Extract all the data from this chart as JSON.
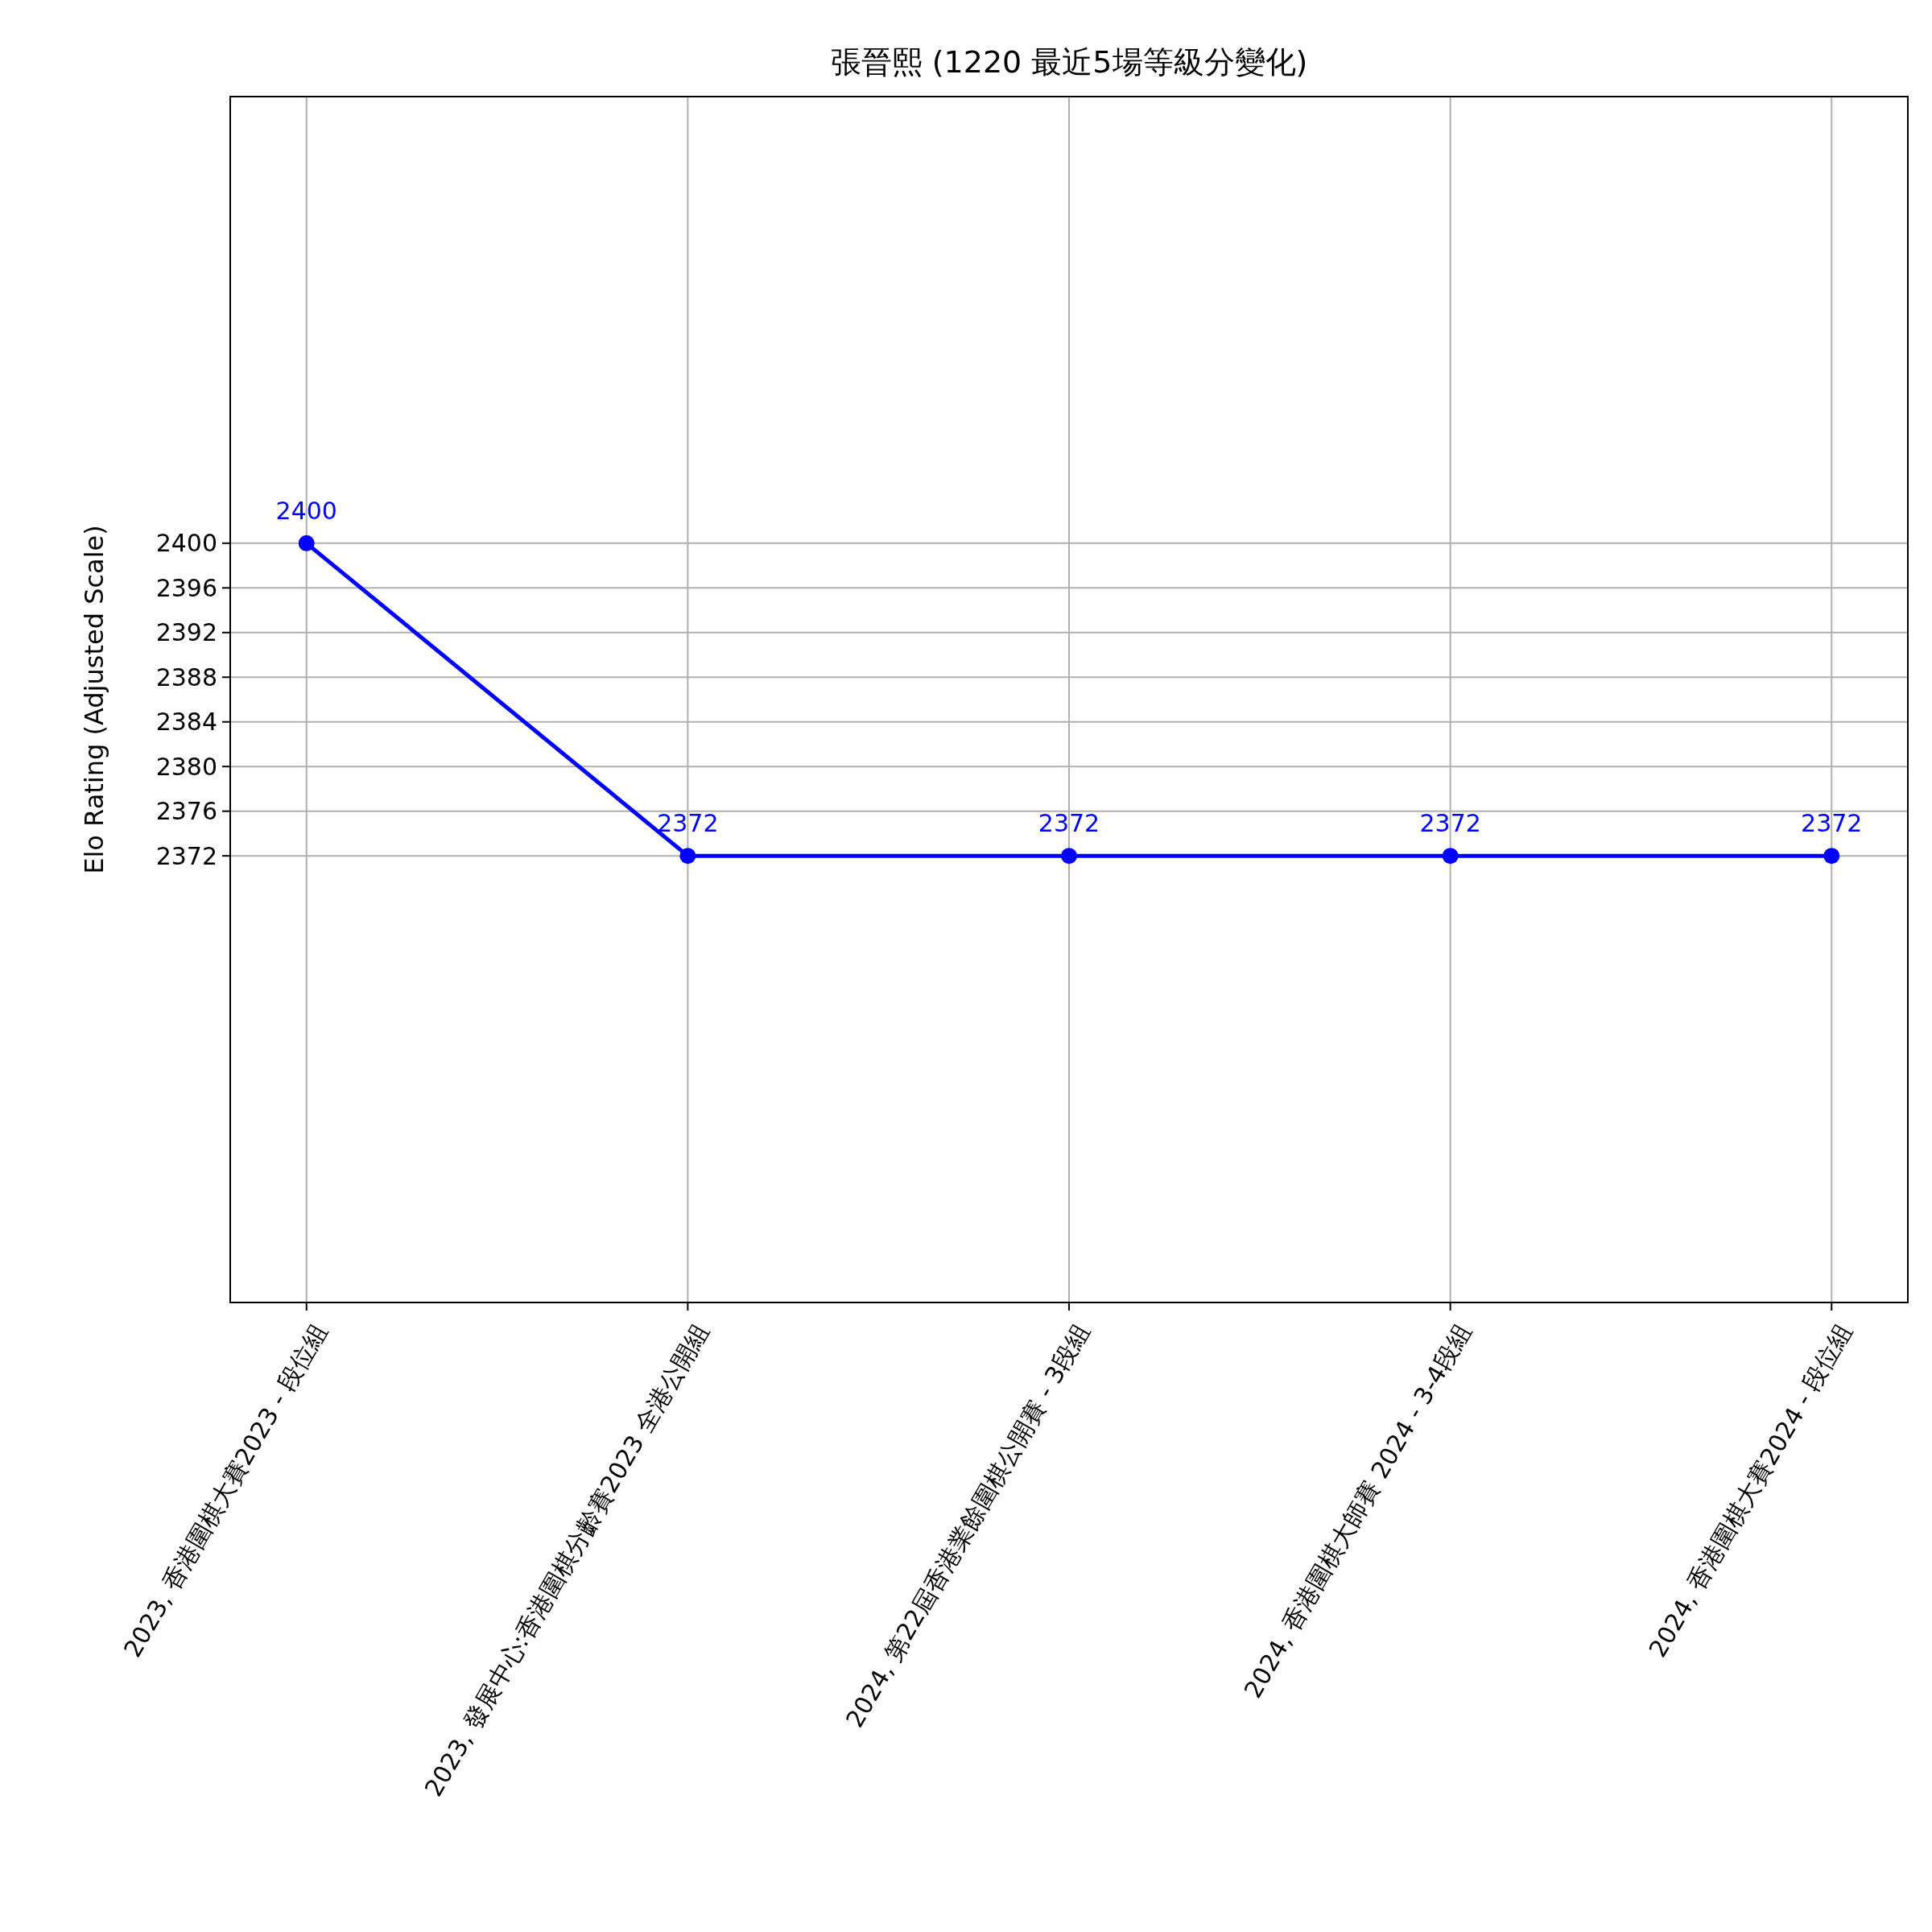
{
  "chart_data": {
    "type": "line",
    "title": "張晉熙 (1220 最近5場等級分變化)",
    "ylabel": "Elo Rating (Adjusted Scale)",
    "categories": [
      "2023, 香港圍棋大賽2023 - 段位組",
      "2023, 發展中心:香港圍棋分齡賽2023 全港公開組",
      "2024, 第22屆香港業餘圍棋公開賽 - 3段組",
      "2024, 香港圍棋大師賽 2024 - 3-4段組",
      "2024, 香港圍棋大賽2024 - 段位組"
    ],
    "series": [
      {
        "color": "#0000ff",
        "values": [
          2400,
          2372,
          2372,
          2372,
          2372
        ]
      }
    ],
    "ylim": [
      2332,
      2440
    ],
    "yticks": [
      2372,
      2376,
      2380,
      2384,
      2388,
      2392,
      2396,
      2400
    ],
    "grid": true,
    "marker": "circle",
    "line_style": "solid",
    "data_labels": true
  }
}
